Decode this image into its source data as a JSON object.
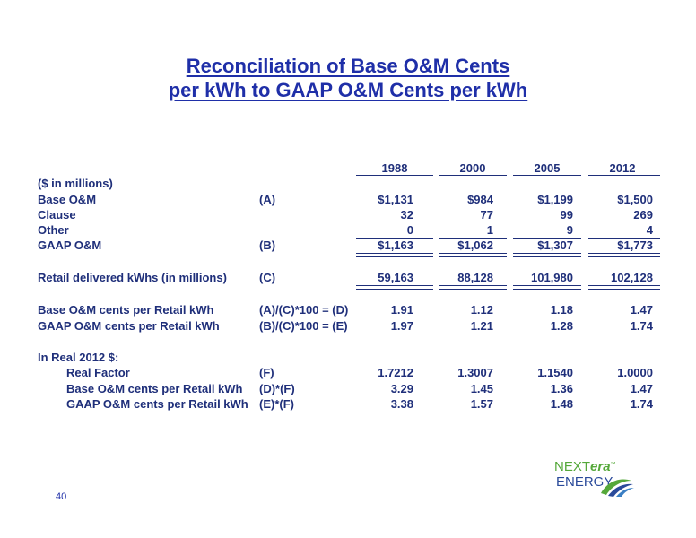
{
  "title_line1": "Reconciliation of Base O&M Cents",
  "title_line2": "per kWh to GAAP O&M Cents per kWh",
  "years": [
    "1988",
    "2000",
    "2005",
    "2012"
  ],
  "rows": {
    "units": {
      "label": "($ in millions)"
    },
    "base_om": {
      "label": "Base O&M",
      "ref": "(A)",
      "values": [
        "$1,131",
        "$984",
        "$1,199",
        "$1,500"
      ]
    },
    "clause": {
      "label": "Clause",
      "values": [
        "32",
        "77",
        "99",
        "269"
      ]
    },
    "other": {
      "label": "Other",
      "values": [
        "0",
        "1",
        "9",
        "4"
      ]
    },
    "gaap_om": {
      "label": "GAAP O&M",
      "ref": "(B)",
      "values": [
        "$1,163",
        "$1,062",
        "$1,307",
        "$1,773"
      ]
    },
    "retail_kwh": {
      "label": "Retail delivered kWhs (in millions)",
      "ref": "(C)",
      "values": [
        "59,163",
        "88,128",
        "101,980",
        "102,128"
      ]
    },
    "base_cents": {
      "label": "Base O&M cents per Retail kWh",
      "ref": "(A)/(C)*100 = (D)",
      "values": [
        "1.91",
        "1.12",
        "1.18",
        "1.47"
      ]
    },
    "gaap_cents": {
      "label": "GAAP O&M cents per Retail kWh",
      "ref": "(B)/(C)*100 = (E)",
      "values": [
        "1.97",
        "1.21",
        "1.28",
        "1.74"
      ]
    },
    "real_heading": {
      "label": "In Real 2012 $:"
    },
    "real_factor": {
      "label": "Real Factor",
      "ref": "(F)",
      "values": [
        "1.7212",
        "1.3007",
        "1.1540",
        "1.0000"
      ]
    },
    "real_base": {
      "label": "Base O&M cents per Retail kWh",
      "ref": "(D)*(F)",
      "values": [
        "3.29",
        "1.45",
        "1.36",
        "1.47"
      ]
    },
    "real_gaap": {
      "label": "GAAP O&M cents per Retail kWh",
      "ref": "(E)*(F)",
      "values": [
        "3.38",
        "1.57",
        "1.48",
        "1.74"
      ]
    }
  },
  "page_number": "40",
  "logo": {
    "text_next": "NEXT",
    "text_era": "era",
    "text_energy": "ENERGY",
    "colors": {
      "green": "#55a83a",
      "blue": "#2a4a9a"
    }
  }
}
